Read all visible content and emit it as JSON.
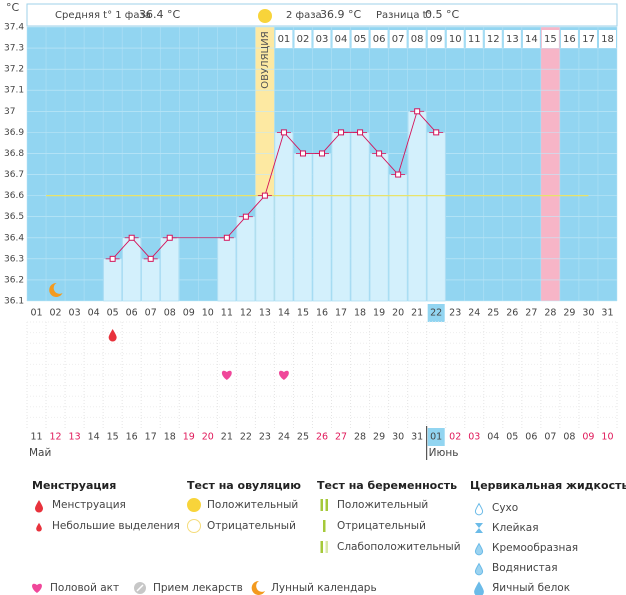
{
  "summary": {
    "phase1_label": "Средняя t° 1 фаза",
    "phase1_value": "36.4 °C",
    "phase2_label": "2 фаза",
    "phase2_value": "36.9 °C",
    "diff_label": "Разница t°",
    "diff_value": "0.5 °C"
  },
  "chart_data": {
    "type": "line",
    "y_unit": "°C",
    "ylim": [
      36.1,
      37.4
    ],
    "yticks": [
      36.1,
      36.2,
      36.3,
      36.4,
      36.5,
      36.6,
      36.7,
      36.8,
      36.9,
      37,
      37.1,
      37.2,
      37.3,
      37.4
    ],
    "categories": [
      "01",
      "02",
      "03",
      "04",
      "05",
      "06",
      "07",
      "08",
      "09",
      "10",
      "11",
      "12",
      "13",
      "14",
      "15",
      "16",
      "17",
      "18",
      "19",
      "20",
      "21",
      "22",
      "23",
      "24",
      "25",
      "26",
      "27",
      "28",
      "29",
      "30",
      "31"
    ],
    "series": [
      {
        "name": "Температура",
        "color": "#d4145a",
        "values": [
          null,
          null,
          null,
          null,
          36.3,
          36.4,
          36.3,
          36.4,
          null,
          null,
          36.4,
          36.5,
          36.6,
          36.9,
          36.8,
          36.8,
          36.9,
          36.9,
          36.8,
          36.7,
          37.0,
          36.9,
          null,
          null,
          null,
          null,
          null,
          null,
          null,
          null,
          null
        ]
      }
    ],
    "coverline": 36.6,
    "ovulation_label": "ОВУЛЯЦИЯ",
    "ovulation_category": "13",
    "predicted_period_category": "28",
    "today_category": "22",
    "phase_days": [
      null,
      null,
      null,
      null,
      null,
      null,
      null,
      null,
      null,
      null,
      null,
      null,
      null,
      "01",
      "02",
      "03",
      "04",
      "05",
      "06",
      "07",
      "08",
      "09",
      "10",
      "11",
      "12",
      "13",
      "14",
      "15",
      "16",
      "17",
      "18"
    ],
    "dates": [
      {
        "label": "11",
        "weekend": false
      },
      {
        "label": "12",
        "weekend": true
      },
      {
        "label": "13",
        "weekend": true
      },
      {
        "label": "14",
        "weekend": false
      },
      {
        "label": "15",
        "weekend": false
      },
      {
        "label": "16",
        "weekend": false
      },
      {
        "label": "17",
        "weekend": false
      },
      {
        "label": "18",
        "weekend": false
      },
      {
        "label": "19",
        "weekend": true
      },
      {
        "label": "20",
        "weekend": true
      },
      {
        "label": "21",
        "weekend": false
      },
      {
        "label": "22",
        "weekend": false
      },
      {
        "label": "23",
        "weekend": false
      },
      {
        "label": "24",
        "weekend": false
      },
      {
        "label": "25",
        "weekend": false
      },
      {
        "label": "26",
        "weekend": true
      },
      {
        "label": "27",
        "weekend": true
      },
      {
        "label": "28",
        "weekend": false
      },
      {
        "label": "29",
        "weekend": false
      },
      {
        "label": "30",
        "weekend": false
      },
      {
        "label": "31",
        "weekend": false
      },
      {
        "label": "01",
        "weekend": false
      },
      {
        "label": "02",
        "weekend": true
      },
      {
        "label": "03",
        "weekend": true
      },
      {
        "label": "04",
        "weekend": false
      },
      {
        "label": "05",
        "weekend": false
      },
      {
        "label": "06",
        "weekend": false
      },
      {
        "label": "07",
        "weekend": false
      },
      {
        "label": "08",
        "weekend": false
      },
      {
        "label": "09",
        "weekend": true
      },
      {
        "label": "10",
        "weekend": true
      }
    ],
    "months": [
      {
        "label": "Май",
        "category": "01"
      },
      {
        "label": "Июнь",
        "category": "22"
      }
    ],
    "menstruation": [
      "05"
    ],
    "intercourse": [
      "11",
      "14"
    ],
    "lunar": [
      "02"
    ]
  },
  "legend": {
    "sections": [
      {
        "title": "Менструация",
        "items": [
          "Менструация",
          "Небольшие выделения"
        ]
      },
      {
        "title": "Тест на овуляцию",
        "items": [
          "Положительный",
          "Отрицательный"
        ]
      },
      {
        "title": "Тест на беременность",
        "items": [
          "Положительный",
          "Отрицательный",
          "Слабоположительный"
        ]
      },
      {
        "title": "Цервикальная жидкость",
        "items": [
          "Сухо",
          "Клейкая",
          "Кремообразная",
          "Водянистая",
          "Яичный белок"
        ]
      }
    ],
    "extra": [
      "Половой акт",
      "Прием лекарств",
      "Лунный календарь"
    ]
  }
}
